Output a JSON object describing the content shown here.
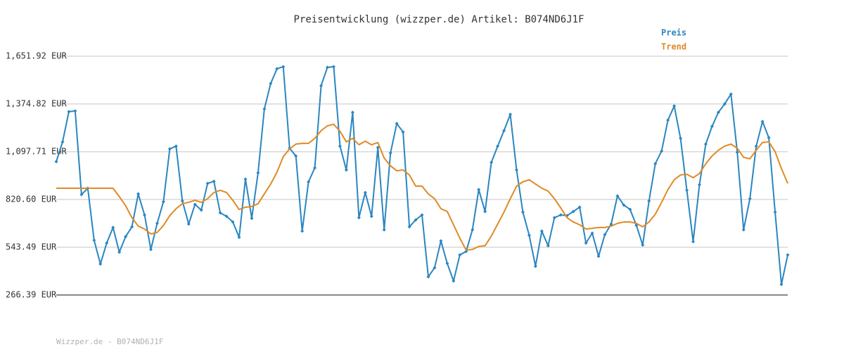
{
  "chart_data": {
    "type": "line",
    "title": "Preisentwicklung (wizzper.de) Artikel: B074ND6J1F",
    "footer": "Wizzper.de - B074ND6J1F",
    "ylim": [
      266.39,
      1651.92
    ],
    "yticks": [
      {
        "value": 266.39,
        "label": "266.39 EUR"
      },
      {
        "value": 543.49,
        "label": "543.49 EUR"
      },
      {
        "value": 820.6,
        "label": "820.60 EUR"
      },
      {
        "value": 1097.71,
        "label": "1,097.71 EUR"
      },
      {
        "value": 1374.82,
        "label": "1,374.82 EUR"
      },
      {
        "value": 1651.92,
        "label": "1,651.92 EUR"
      }
    ],
    "grid": true,
    "legend": "top-right",
    "series": [
      {
        "name": "Preis",
        "color": "#2a86c0",
        "markers": true,
        "values": [
          1040,
          1155,
          1330,
          1334,
          849,
          886,
          584,
          446,
          568,
          658,
          515,
          605,
          662,
          853,
          731,
          531,
          682,
          808,
          1114,
          1130,
          812,
          678,
          792,
          759,
          914,
          926,
          743,
          723,
          690,
          601,
          939,
          711,
          975,
          1346,
          1493,
          1579,
          1591,
          1118,
          1073,
          637,
          923,
          1004,
          1481,
          1587,
          1591,
          1130,
          992,
          1326,
          715,
          861,
          723,
          1122,
          645,
          1090,
          1261,
          1212,
          662,
          702,
          731,
          372,
          425,
          580,
          450,
          348,
          499,
          519,
          645,
          878,
          751,
          1036,
          1130,
          1220,
          1314,
          992,
          747,
          613,
          433,
          637,
          552,
          715,
          731,
          727,
          751,
          776,
          568,
          625,
          491,
          617,
          678,
          841,
          788,
          763,
          670,
          556,
          812,
          1028,
          1102,
          1281,
          1363,
          1175,
          874,
          576,
          906,
          1142,
          1245,
          1326,
          1375,
          1432,
          1094,
          645,
          825,
          1130,
          1273,
          1179,
          747,
          328,
          499
        ]
      },
      {
        "name": "Trend",
        "color": "#e08a25",
        "markers": false,
        "values": [
          886,
          886,
          886,
          886,
          886,
          886,
          886,
          886,
          886,
          886,
          837,
          784,
          715,
          666,
          649,
          621,
          629,
          670,
          727,
          767,
          796,
          804,
          816,
          804,
          825,
          861,
          874,
          861,
          816,
          763,
          776,
          780,
          796,
          853,
          910,
          979,
          1069,
          1114,
          1142,
          1146,
          1146,
          1175,
          1220,
          1248,
          1257,
          1216,
          1155,
          1175,
          1138,
          1159,
          1138,
          1151,
          1061,
          1016,
          987,
          992,
          963,
          898,
          898,
          853,
          825,
          767,
          751,
          674,
          596,
          527,
          531,
          548,
          552,
          609,
          678,
          747,
          825,
          898,
          923,
          935,
          910,
          886,
          869,
          825,
          772,
          715,
          690,
          674,
          649,
          653,
          658,
          658,
          666,
          682,
          690,
          690,
          682,
          662,
          690,
          735,
          804,
          878,
          935,
          963,
          967,
          947,
          971,
          1028,
          1073,
          1106,
          1130,
          1142,
          1118,
          1065,
          1057,
          1106,
          1151,
          1155,
          1098,
          1000,
          914
        ]
      }
    ]
  }
}
